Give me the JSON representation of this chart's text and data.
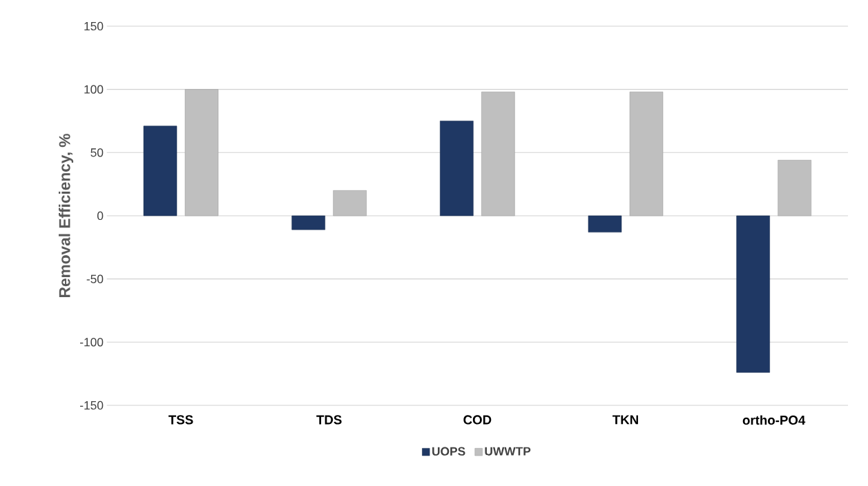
{
  "chart_data": {
    "type": "bar",
    "ylabel": "Removal Efficiency, %",
    "categories": [
      "TSS",
      "TDS",
      "COD",
      "TKN",
      "ortho-PO4"
    ],
    "series": [
      {
        "name": "UOPS",
        "color": "#1f3864",
        "values": [
          71,
          -11,
          75,
          -13,
          -124
        ]
      },
      {
        "name": "UWWTP",
        "color": "#bfbfbf",
        "values": [
          100,
          20,
          98,
          98,
          44
        ]
      }
    ],
    "ylim": [
      -150,
      150
    ],
    "yticks": [
      -150,
      -100,
      -50,
      0,
      50,
      100,
      150
    ],
    "grid": "y",
    "legend": "bottom"
  }
}
